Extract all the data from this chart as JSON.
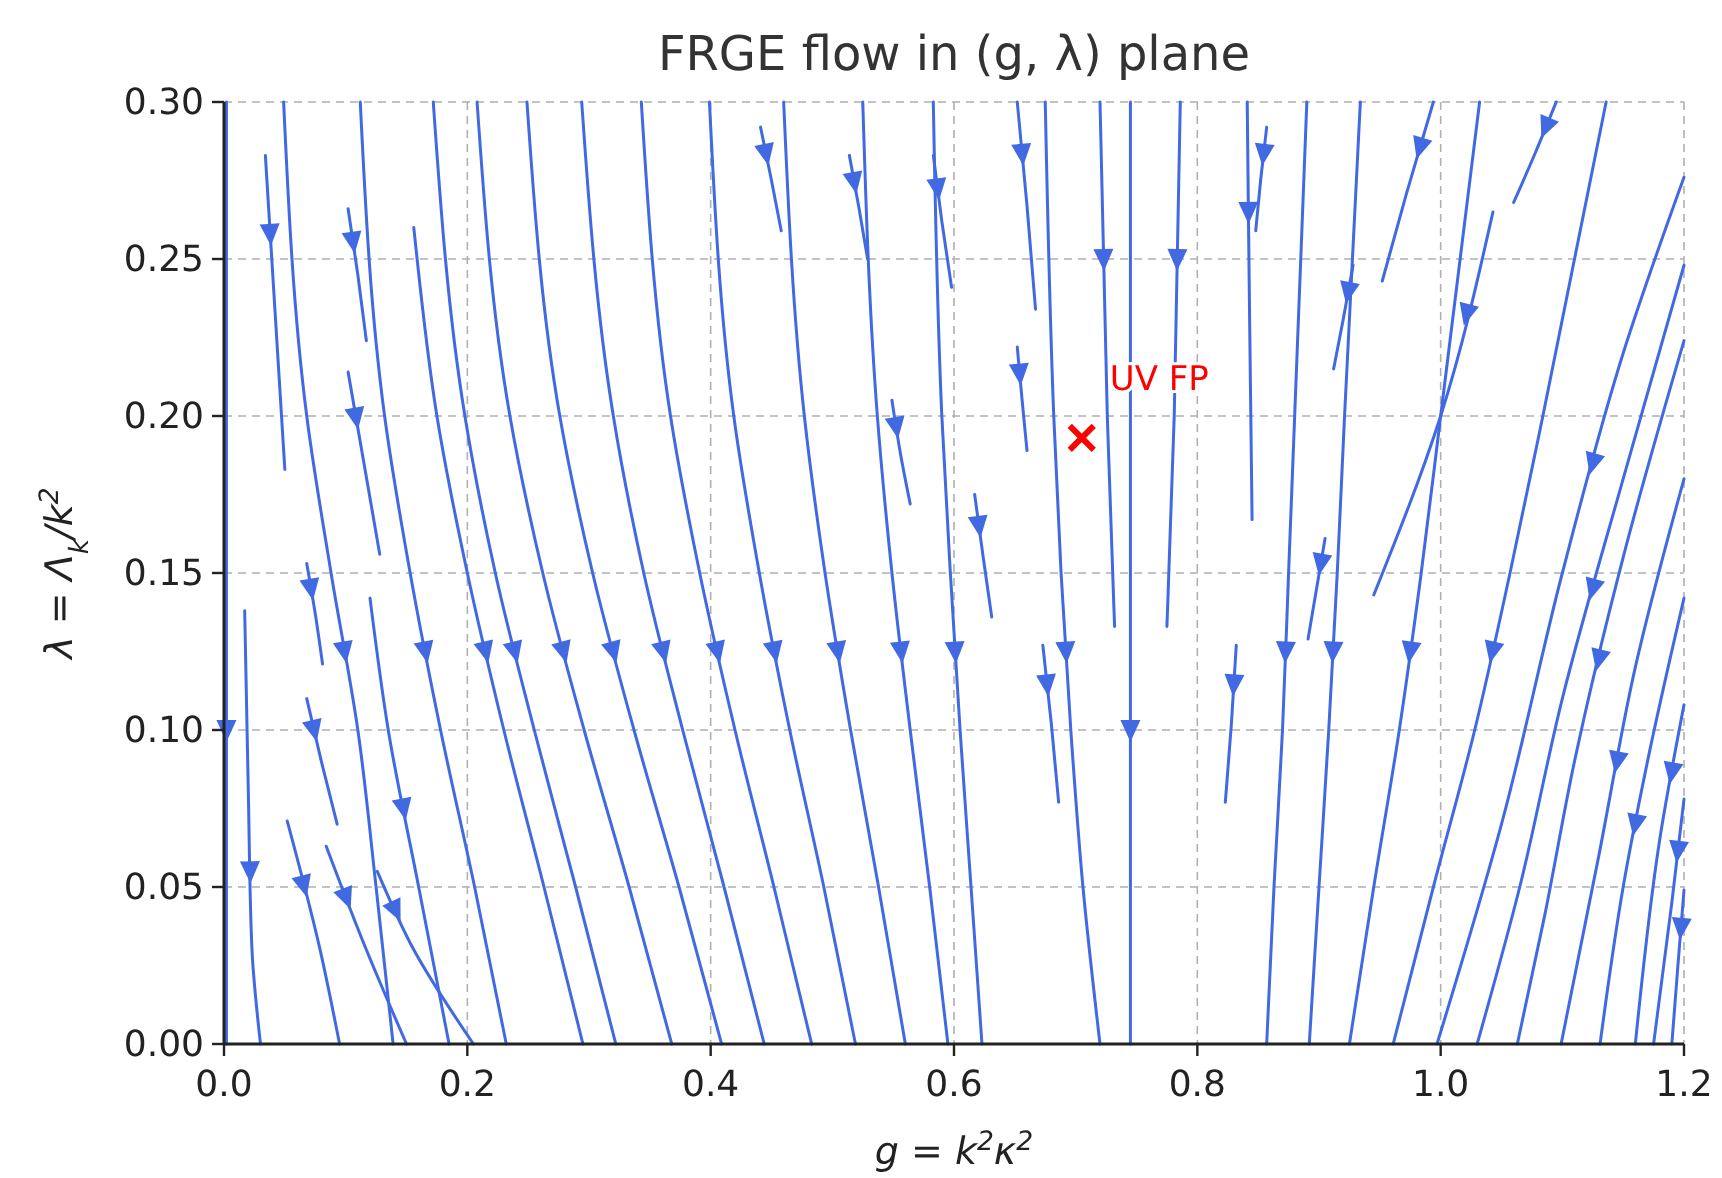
{
  "chart_data": {
    "type": "line",
    "title": "FRGE flow in (g, λ) plane",
    "xlabel": "g = k$^{2}$κ$^{2}$",
    "ylabel": "λ = Λ$_{k}$/k$^{2}$",
    "xlim": [
      0,
      1.2
    ],
    "ylim": [
      0,
      0.3
    ],
    "xticks": [
      {
        "value": 0,
        "label": "0.0"
      },
      {
        "value": 0.2,
        "label": "0.2"
      },
      {
        "value": 0.4,
        "label": "0.4"
      },
      {
        "value": 0.6,
        "label": "0.6"
      },
      {
        "value": 0.8,
        "label": "0.8"
      },
      {
        "value": 1.0,
        "label": "1.0"
      },
      {
        "value": 1.2,
        "label": "1.2"
      }
    ],
    "yticks": [
      {
        "value": 0,
        "label": "0.00"
      },
      {
        "value": 0.05,
        "label": "0.05"
      },
      {
        "value": 0.1,
        "label": "0.10"
      },
      {
        "value": 0.15,
        "label": "0.15"
      },
      {
        "value": 0.2,
        "label": "0.20"
      },
      {
        "value": 0.25,
        "label": "0.25"
      },
      {
        "value": 0.3,
        "label": "0.30"
      }
    ],
    "grid": true,
    "line_style": "solid",
    "marker": "none",
    "series": [
      {
        "color": "#4169e1",
        "x": [
          0.002,
          0.002,
          0.002,
          0.002
        ],
        "values": [
          0.3,
          0.15,
          0.05,
          0
        ]
      },
      {
        "color": "#4169e1",
        "x": [
          0.017,
          0.02,
          0.023,
          0.03
        ],
        "values": [
          0.138,
          0.08,
          0.03,
          0
        ]
      },
      {
        "color": "#4169e1",
        "x": [
          0.049,
          0.068,
          0.088,
          0.11,
          0.125,
          0.139
        ],
        "values": [
          0.3,
          0.2,
          0.15,
          0.1,
          0.05,
          0
        ]
      },
      {
        "color": "#4169e1",
        "x": [
          0.112,
          0.132,
          0.153,
          0.178,
          0.206,
          0.232
        ],
        "values": [
          0.3,
          0.2,
          0.15,
          0.1,
          0.05,
          0
        ]
      },
      {
        "color": "#4169e1",
        "x": [
          0.172,
          0.198,
          0.223,
          0.255,
          0.289,
          0.322
        ],
        "values": [
          0.3,
          0.2,
          0.15,
          0.1,
          0.05,
          0
        ]
      },
      {
        "color": "#4169e1",
        "x": [
          0.208,
          0.235,
          0.262,
          0.296,
          0.333,
          0.368
        ],
        "values": [
          0.3,
          0.2,
          0.15,
          0.1,
          0.05,
          0
        ]
      },
      {
        "color": "#4169e1",
        "x": [
          0.249,
          0.276,
          0.303,
          0.337,
          0.374,
          0.409
        ],
        "values": [
          0.3,
          0.2,
          0.15,
          0.1,
          0.05,
          0
        ]
      },
      {
        "color": "#4169e1",
        "x": [
          0.294,
          0.32,
          0.345,
          0.377,
          0.411,
          0.444
        ],
        "values": [
          0.3,
          0.2,
          0.15,
          0.1,
          0.05,
          0
        ]
      },
      {
        "color": "#4169e1",
        "x": [
          0.343,
          0.367,
          0.391,
          0.42,
          0.452,
          0.483
        ],
        "values": [
          0.3,
          0.2,
          0.15,
          0.1,
          0.05,
          0
        ]
      },
      {
        "color": "#4169e1",
        "x": [
          0.399,
          0.419,
          0.44,
          0.465,
          0.493,
          0.519
        ],
        "values": [
          0.3,
          0.2,
          0.15,
          0.1,
          0.05,
          0
        ]
      },
      {
        "color": "#4169e1",
        "x": [
          0.46,
          0.477,
          0.494,
          0.515,
          0.538,
          0.56
        ],
        "values": [
          0.3,
          0.2,
          0.15,
          0.1,
          0.05,
          0
        ]
      },
      {
        "color": "#4169e1",
        "x": [
          0.525,
          0.537,
          0.549,
          0.564,
          0.58,
          0.595
        ],
        "values": [
          0.3,
          0.2,
          0.15,
          0.1,
          0.05,
          0
        ]
      },
      {
        "color": "#4169e1",
        "x": [
          0.583,
          0.59,
          0.597,
          0.605,
          0.614,
          0.623
        ],
        "values": [
          0.3,
          0.2,
          0.15,
          0.1,
          0.05,
          0
        ]
      },
      {
        "color": "#4169e1",
        "x": [
          0.675,
          0.682,
          0.688,
          0.696,
          0.706,
          0.72
        ],
        "values": [
          0.3,
          0.2,
          0.15,
          0.1,
          0.05,
          0
        ]
      },
      {
        "color": "#4169e1",
        "x": [
          0.72,
          0.726,
          0.732
        ],
        "values": [
          0.3,
          0.2,
          0.133
        ]
      },
      {
        "color": "#4169e1",
        "x": [
          0.745,
          0.745,
          0.745,
          0.745
        ],
        "values": [
          0.3,
          0.15,
          0.05,
          0
        ]
      },
      {
        "color": "#4169e1",
        "x": [
          0.786,
          0.781,
          0.775
        ],
        "values": [
          0.3,
          0.2,
          0.133
        ]
      },
      {
        "color": "#4169e1",
        "x": [
          0.841,
          0.843,
          0.845
        ],
        "values": [
          0.3,
          0.23,
          0.167
        ]
      },
      {
        "color": "#4169e1",
        "x": [
          0.89,
          0.88,
          0.875,
          0.87,
          0.863,
          0.857
        ],
        "values": [
          0.3,
          0.2,
          0.15,
          0.1,
          0.05,
          0
        ]
      },
      {
        "color": "#4169e1",
        "x": [
          0.934,
          0.921,
          0.915,
          0.908,
          0.9,
          0.892
        ],
        "values": [
          0.3,
          0.2,
          0.15,
          0.1,
          0.05,
          0
        ]
      },
      {
        "color": "#4169e1",
        "x": [
          1.032,
          1.0,
          0.984,
          0.966,
          0.945,
          0.925
        ],
        "values": [
          0.3,
          0.2,
          0.15,
          0.1,
          0.05,
          0
        ]
      },
      {
        "color": "#4169e1",
        "x": [
          1.136,
          1.084,
          1.057,
          1.028,
          0.994,
          0.961
        ],
        "values": [
          0.3,
          0.2,
          0.15,
          0.1,
          0.05,
          0
        ]
      },
      {
        "color": "#4169e1",
        "x": [
          1.2,
          1.15,
          1.1,
          1.05,
          0.997
        ],
        "values": [
          0.276,
          0.22,
          0.15,
          0.07,
          0
        ]
      },
      {
        "color": "#4169e1",
        "x": [
          1.2,
          1.15,
          1.1,
          1.065,
          1.03
        ],
        "values": [
          0.248,
          0.18,
          0.11,
          0.05,
          0
        ]
      },
      {
        "color": "#4169e1",
        "x": [
          1.2,
          1.15,
          1.11,
          1.085,
          1.063
        ],
        "values": [
          0.224,
          0.155,
          0.09,
          0.04,
          0
        ]
      },
      {
        "color": "#4169e1",
        "x": [
          1.2,
          1.16,
          1.13,
          1.099
        ],
        "values": [
          0.18,
          0.12,
          0.06,
          0
        ]
      },
      {
        "color": "#4169e1",
        "x": [
          1.2,
          1.17,
          1.15,
          1.131
        ],
        "values": [
          0.142,
          0.09,
          0.05,
          0
        ]
      },
      {
        "color": "#4169e1",
        "x": [
          1.2,
          1.18,
          1.16
        ],
        "values": [
          0.108,
          0.065,
          0
        ]
      },
      {
        "color": "#4169e1",
        "x": [
          1.2,
          1.19,
          1.175
        ],
        "values": [
          0.078,
          0.045,
          0
        ]
      },
      {
        "color": "#4169e1",
        "x": [
          1.2,
          1.195,
          1.19
        ],
        "values": [
          0.049,
          0.025,
          0
        ]
      },
      {
        "color": "#4169e1",
        "x": [
          0.156,
          0.175,
          0.2,
          0.23,
          0.263,
          0.295
        ],
        "values": [
          0.26,
          0.2,
          0.15,
          0.1,
          0.05,
          0
        ]
      },
      {
        "color": "#4169e1",
        "x": [
          0.12,
          0.135,
          0.16,
          0.185
        ],
        "values": [
          0.142,
          0.1,
          0.05,
          0
        ]
      },
      {
        "color": "#4169e1",
        "x": [
          0.052,
          0.079,
          0.095
        ],
        "values": [
          0.071,
          0.03,
          0
        ]
      },
      {
        "color": "#4169e1",
        "x": [
          0.084,
          0.117,
          0.15
        ],
        "values": [
          0.063,
          0.03,
          0
        ]
      },
      {
        "color": "#4169e1",
        "x": [
          0.126,
          0.156,
          0.205
        ],
        "values": [
          0.055,
          0.03,
          0
        ]
      },
      {
        "color": "#4169e1",
        "x": [
          0.034,
          0.042,
          0.05
        ],
        "values": [
          0.283,
          0.233,
          0.183
        ]
      },
      {
        "color": "#4169e1",
        "x": [
          0.102,
          0.11,
          0.117
        ],
        "values": [
          0.266,
          0.245,
          0.224
        ]
      },
      {
        "color": "#4169e1",
        "x": [
          0.102,
          0.115,
          0.128
        ],
        "values": [
          0.214,
          0.185,
          0.156
        ]
      },
      {
        "color": "#4169e1",
        "x": [
          0.068,
          0.075,
          0.081
        ],
        "values": [
          0.153,
          0.137,
          0.121
        ]
      },
      {
        "color": "#4169e1",
        "x": [
          0.068,
          0.08,
          0.093
        ],
        "values": [
          0.11,
          0.09,
          0.07
        ]
      },
      {
        "color": "#4169e1",
        "x": [
          0.441,
          0.45,
          0.458
        ],
        "values": [
          0.292,
          0.275,
          0.259
        ]
      },
      {
        "color": "#4169e1",
        "x": [
          0.514,
          0.522,
          0.529
        ],
        "values": [
          0.283,
          0.266,
          0.25
        ]
      },
      {
        "color": "#4169e1",
        "x": [
          0.583,
          0.59,
          0.598
        ],
        "values": [
          0.283,
          0.262,
          0.241
        ]
      },
      {
        "color": "#4169e1",
        "x": [
          0.549,
          0.556,
          0.564
        ],
        "values": [
          0.205,
          0.188,
          0.172
        ]
      },
      {
        "color": "#4169e1",
        "x": [
          0.652,
          0.66,
          0.667
        ],
        "values": [
          0.3,
          0.267,
          0.234
        ]
      },
      {
        "color": "#4169e1",
        "x": [
          0.652,
          0.656,
          0.66
        ],
        "values": [
          0.222,
          0.205,
          0.189
        ]
      },
      {
        "color": "#4169e1",
        "x": [
          0.617,
          0.624,
          0.631
        ],
        "values": [
          0.175,
          0.155,
          0.136
        ]
      },
      {
        "color": "#4169e1",
        "x": [
          0.673,
          0.68,
          0.686
        ],
        "values": [
          0.127,
          0.102,
          0.077
        ]
      },
      {
        "color": "#4169e1",
        "x": [
          0.857,
          0.852,
          0.848
        ],
        "values": [
          0.292,
          0.275,
          0.259
        ]
      },
      {
        "color": "#4169e1",
        "x": [
          0.832,
          0.828,
          0.823
        ],
        "values": [
          0.127,
          0.102,
          0.077
        ]
      },
      {
        "color": "#4169e1",
        "x": [
          0.928,
          0.92,
          0.912
        ],
        "values": [
          0.248,
          0.231,
          0.215
        ]
      },
      {
        "color": "#4169e1",
        "x": [
          0.905,
          0.898,
          0.891
        ],
        "values": [
          0.161,
          0.145,
          0.129
        ]
      },
      {
        "color": "#4169e1",
        "x": [
          0.994,
          0.972,
          0.952
        ],
        "values": [
          0.3,
          0.271,
          0.243
        ]
      },
      {
        "color": "#4169e1",
        "x": [
          1.043,
          1.0,
          0.945
        ],
        "values": [
          0.265,
          0.2,
          0.143
        ]
      },
      {
        "color": "#4169e1",
        "x": [
          1.095,
          1.078,
          1.06
        ],
        "values": [
          0.3,
          0.284,
          0.268
        ]
      },
      {
        "type": "scatter",
        "name": "UV FP",
        "color": "#ff0000",
        "marker": "cross",
        "x": [
          0.705
        ],
        "values": [
          0.193
        ]
      }
    ]
  }
}
